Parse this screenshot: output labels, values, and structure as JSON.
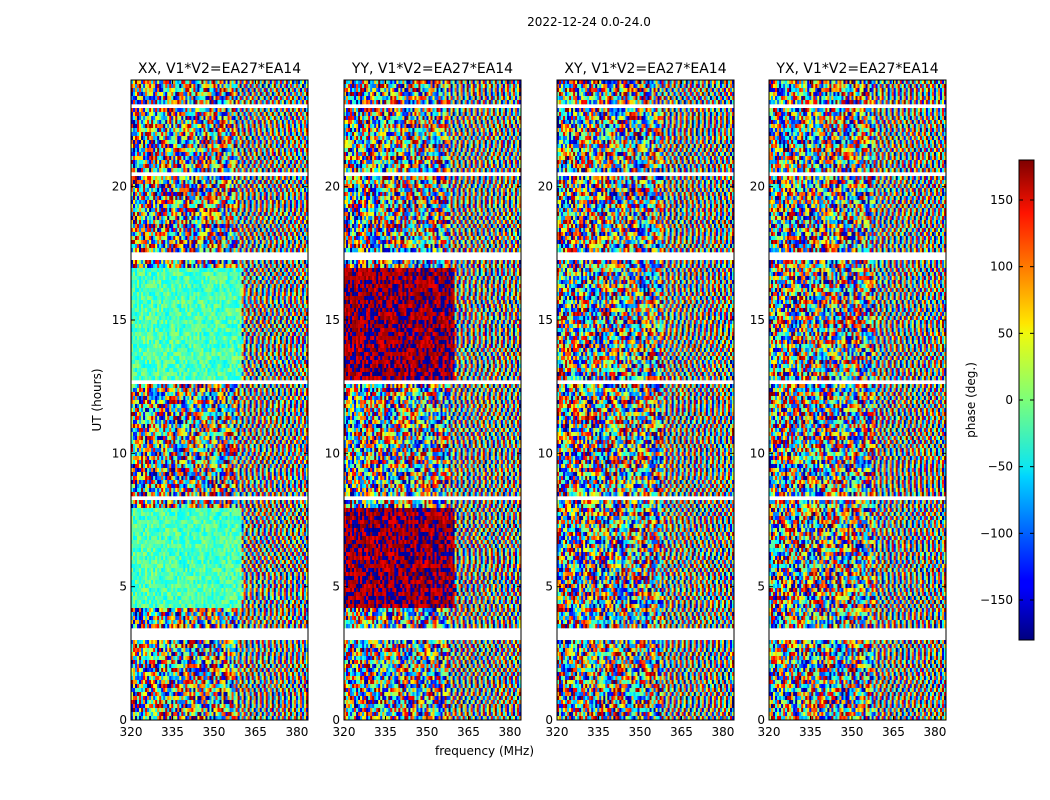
{
  "figure_title": "2022-12-24 0.0-24.0",
  "chart_data": [
    {
      "type": "heatmap",
      "title": "XX, V1*V2=EA27*EA14",
      "xlabel": "",
      "ylabel": "UT (hours)",
      "xlim": [
        320,
        384
      ],
      "ylim": [
        0,
        24
      ],
      "xticks": [
        "320",
        "335",
        "350",
        "365",
        "380"
      ],
      "yticks": [
        "0",
        "5",
        "10",
        "15",
        "20"
      ],
      "colorscale": "jet"
    },
    {
      "type": "heatmap",
      "title": "YY, V1*V2=EA27*EA14",
      "xlabel": "frequency (MHz)",
      "ylabel": "",
      "xlim": [
        320,
        384
      ],
      "ylim": [
        0,
        24
      ],
      "xticks": [
        "320",
        "335",
        "350",
        "365",
        "380"
      ],
      "yticks": [
        "0",
        "5",
        "10",
        "15",
        "20"
      ],
      "colorscale": "jet"
    },
    {
      "type": "heatmap",
      "title": "XY, V1*V2=EA27*EA14",
      "xlabel": "",
      "ylabel": "",
      "xlim": [
        320,
        384
      ],
      "ylim": [
        0,
        24
      ],
      "xticks": [
        "320",
        "335",
        "350",
        "365",
        "380"
      ],
      "yticks": [
        "0",
        "5",
        "10",
        "15",
        "20"
      ],
      "colorscale": "jet"
    },
    {
      "type": "heatmap",
      "title": "YX, V1*V2=EA27*EA14",
      "xlabel": "",
      "ylabel": "",
      "xlim": [
        320,
        384
      ],
      "ylim": [
        0,
        24
      ],
      "xticks": [
        "320",
        "335",
        "350",
        "365",
        "380"
      ],
      "yticks": [
        "0",
        "5",
        "10",
        "15",
        "20"
      ],
      "colorscale": "jet"
    }
  ],
  "colorbar": {
    "label": "phase (deg.)",
    "range": [
      -180,
      180
    ],
    "ticks": [
      "150",
      "100",
      "50",
      "0",
      "−50",
      "−100",
      "−150"
    ]
  }
}
